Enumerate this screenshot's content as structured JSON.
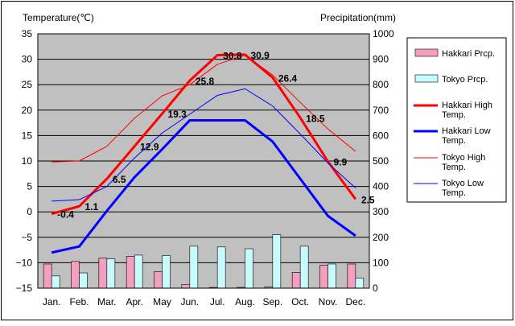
{
  "chart_data": {
    "type": "line",
    "left_axis_title": "Temperature(℃)",
    "right_axis_title": "Precipitation(mm)",
    "months": [
      "Jan.",
      "Feb.",
      "Mar.",
      "Apr.",
      "May",
      "Jun.",
      "Jul.",
      "Aug.",
      "Sep.",
      "Oct.",
      "Nov.",
      "Dec."
    ],
    "temp_ylim": [
      -15,
      35
    ],
    "temp_ticks": [
      "35",
      "30",
      "25",
      "20",
      "15",
      "10",
      "5",
      "0",
      "−5",
      "−10",
      "−15"
    ],
    "precip_ylim": [
      0,
      1000
    ],
    "precip_ticks": [
      "1000",
      "900",
      "800",
      "700",
      "600",
      "500",
      "400",
      "300",
      "200",
      "100",
      "0"
    ],
    "bar_series": [
      {
        "name": "Hakkari Prcp.",
        "color": "#f49fbf",
        "values": [
          95,
          105,
          118,
          125,
          65,
          15,
          3,
          3,
          5,
          62,
          90,
          95
        ]
      },
      {
        "name": "Tokyo Prcp.",
        "color": "#c8fbfb",
        "values": [
          48,
          60,
          115,
          130,
          128,
          165,
          162,
          155,
          210,
          165,
          95,
          40
        ]
      }
    ],
    "line_series": [
      {
        "name": "Hakkari High Temp.",
        "color": "#ff0000",
        "width": 3,
        "values": [
          -0.4,
          1.1,
          6.5,
          12.9,
          19.3,
          25.8,
          30.8,
          30.9,
          26.4,
          18.5,
          9.9,
          2.5
        ],
        "labels": [
          "-0.4",
          "1.1",
          "6.5",
          "12.9",
          "19.3",
          "25.8",
          "30.8",
          "30.9",
          "26.4",
          "18.5",
          "9.9",
          "2.5"
        ]
      },
      {
        "name": "Hakkari Low Temp.",
        "color": "#0000ff",
        "width": 3,
        "values": [
          -8,
          -6.8,
          0.2,
          6.8,
          12.3,
          18,
          18,
          18,
          13.8,
          6.5,
          -0.8,
          -4.7
        ],
        "labels": []
      },
      {
        "name": "Tokyo High Temp.",
        "color": "#ff0000",
        "width": 1,
        "values": [
          9.8,
          10,
          12.9,
          18.4,
          22.8,
          25,
          29,
          30.8,
          26.9,
          21.5,
          16.3,
          11.9
        ],
        "labels": []
      },
      {
        "name": "Tokyo Low Temp.",
        "color": "#0000ff",
        "width": 1,
        "values": [
          2.1,
          2.4,
          5,
          10.6,
          15.5,
          19.2,
          22.9,
          24.2,
          20.8,
          15.3,
          9.6,
          4.7
        ],
        "labels": []
      }
    ],
    "legend": {
      "position": "right",
      "entries": [
        {
          "label": "Hakkari Prcp.",
          "kind": "bar",
          "color": "#f49fbf"
        },
        {
          "label": "Tokyo Prcp.",
          "kind": "bar",
          "color": "#c8fbfb"
        },
        {
          "label": "Hakkari High Temp.",
          "kind": "line",
          "color": "#ff0000",
          "width": 3
        },
        {
          "label": "Hakkari Low Temp.",
          "kind": "line",
          "color": "#0000ff",
          "width": 3
        },
        {
          "label": "Tokyo High Temp.",
          "kind": "line",
          "color": "#ff0000",
          "width": 1
        },
        {
          "label": "Tokyo Low Temp.",
          "kind": "line",
          "color": "#0000ff",
          "width": 1
        }
      ]
    },
    "colors": {
      "plot_background": "#c0c0c0",
      "gridline": "#000000"
    }
  }
}
